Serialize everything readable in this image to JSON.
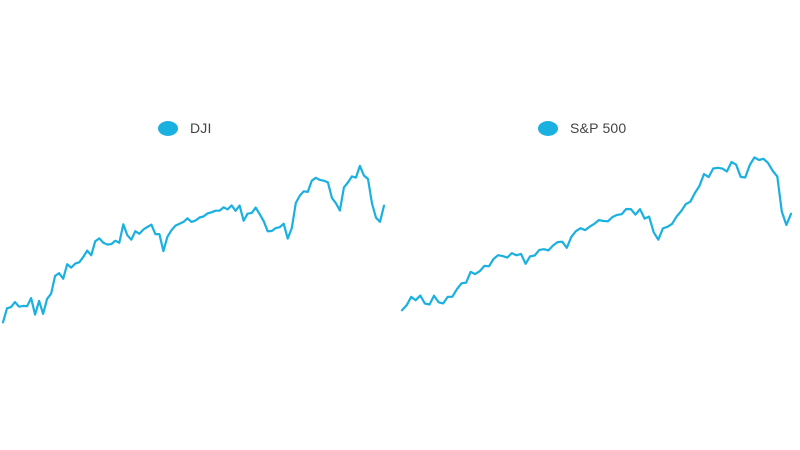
{
  "colors": {
    "series": "#1ab0e0",
    "background": "#ffffff",
    "legend_text": "#444444"
  },
  "chart_data": [
    {
      "type": "line",
      "title": "",
      "xlabel": "",
      "ylabel": "",
      "grid": false,
      "legend_position": "top-center",
      "series": [
        {
          "name": "DJI",
          "values": [
            -0.84,
            0.44,
            0.55,
            1.0,
            0.58,
            0.66,
            0.63,
            1.37,
            -0.14,
            1.11,
            -0.07,
            1.3,
            1.77,
            3.4,
            3.65,
            3.14,
            4.47,
            4.16,
            4.52,
            4.64,
            5.12,
            5.71,
            5.28,
            6.56,
            6.83,
            6.43,
            6.27,
            6.31,
            6.62,
            6.43,
            8.12,
            7.12,
            6.71,
            7.49,
            7.25,
            7.64,
            7.88,
            8.08,
            7.21,
            7.22,
            5.67,
            6.98,
            7.57,
            8.0,
            8.17,
            8.34,
            8.67,
            8.34,
            8.47,
            8.74,
            8.83,
            9.12,
            9.22,
            9.36,
            9.37,
            9.67,
            9.48,
            9.85,
            9.35,
            9.84,
            8.45,
            9.09,
            9.16,
            9.65,
            9.04,
            8.4,
            7.48,
            7.51,
            7.77,
            7.85,
            8.17,
            6.81,
            7.77,
            10.07,
            10.74,
            11.14,
            11.08,
            12.12,
            12.37,
            12.18,
            12.11,
            11.95,
            10.53,
            10.05,
            9.38,
            11.49,
            11.94,
            12.5,
            12.39,
            13.46,
            12.58,
            12.26,
            10.02,
            8.72,
            8.35,
            9.83
          ]
        }
      ]
    },
    {
      "type": "line",
      "title": "",
      "xlabel": "",
      "ylabel": "",
      "grid": false,
      "legend_position": "top-center",
      "series": [
        {
          "name": "S&P 500",
          "values": [
            0.07,
            0.52,
            1.29,
            0.99,
            1.42,
            0.68,
            0.6,
            1.4,
            0.8,
            0.7,
            1.3,
            1.3,
            2.0,
            2.54,
            2.6,
            3.59,
            3.39,
            3.66,
            4.14,
            4.1,
            4.77,
            5.12,
            5.04,
            4.9,
            5.31,
            5.11,
            5.24,
            4.33,
            5.02,
            5.09,
            5.61,
            5.67,
            5.56,
            6.01,
            6.32,
            6.36,
            5.8,
            6.8,
            7.32,
            7.6,
            7.42,
            7.74,
            7.99,
            8.34,
            8.26,
            8.23,
            8.63,
            8.82,
            8.88,
            9.36,
            9.35,
            8.85,
            9.34,
            8.48,
            8.66,
            7.22,
            6.54,
            7.58,
            7.73,
            7.99,
            8.66,
            9.17,
            9.8,
            10.03,
            10.83,
            11.49,
            12.57,
            12.29,
            13.08,
            13.14,
            13.07,
            12.8,
            13.67,
            13.43,
            12.31,
            12.25,
            13.4,
            14.1,
            13.86,
            13.97,
            13.57,
            12.87,
            12.34,
            9.12,
            7.89,
            8.92
          ]
        }
      ]
    }
  ]
}
